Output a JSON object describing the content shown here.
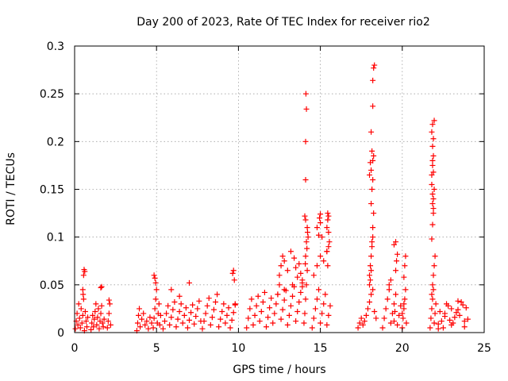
{
  "chart_data": {
    "type": "scatter",
    "title": "Day 200 of 2023, Rate Of TEC Index for receiver rio2",
    "xlabel": "GPS time / hours",
    "ylabel": "ROTI / TECUs",
    "xlim": [
      0,
      25
    ],
    "ylim": [
      0,
      0.3
    ],
    "xticks": [
      "0",
      "5",
      "10",
      "15",
      "20",
      "25"
    ],
    "yticks": [
      "0",
      "0.05",
      "0.1",
      "0.15",
      "0.2",
      "0.25",
      "0.3"
    ],
    "grid": true,
    "marker": "plus",
    "color": "#ff0000",
    "series": [
      {
        "x": [
          0.05,
          0.1,
          0.15,
          0.2,
          0.25,
          0.3,
          0.35,
          0.4,
          0.45,
          0.5,
          0.55,
          0.6,
          0.65,
          0.7,
          0.75,
          0.8,
          0.55,
          0.58,
          0.62,
          0.5,
          0.52,
          1.0,
          1.05,
          1.1,
          1.15,
          1.2,
          1.25,
          1.3,
          1.35,
          1.4,
          1.45,
          1.5,
          1.55,
          1.6,
          1.65,
          1.7,
          1.75,
          1.8,
          1.6,
          1.65,
          2.0,
          2.05,
          2.1,
          2.15,
          2.2,
          2.1,
          3.8,
          3.85,
          3.9,
          3.95,
          4.0,
          4.1,
          4.2,
          4.3,
          4.4,
          4.5,
          4.6,
          4.7,
          4.8,
          4.85,
          4.9,
          4.95,
          5.0,
          5.05,
          5.1,
          5.15,
          5.2,
          5.25,
          4.85,
          4.9,
          4.95,
          5.4,
          5.5,
          5.6,
          5.7,
          5.8,
          5.9,
          6.0,
          6.1,
          6.2,
          6.3,
          6.4,
          6.5,
          6.6,
          6.7,
          6.8,
          6.9,
          7.0,
          7.1,
          7.2,
          7.3,
          7.4,
          7.5,
          7.6,
          7.7,
          5.9,
          6.4,
          7.0,
          7.8,
          7.9,
          8.0,
          8.1,
          8.2,
          8.3,
          8.4,
          8.5,
          8.6,
          8.7,
          8.8,
          8.9,
          9.0,
          9.1,
          9.2,
          9.3,
          9.4,
          9.5,
          9.6,
          9.7,
          9.8,
          9.65,
          9.7,
          9.75,
          9.8,
          10.5,
          10.6,
          10.7,
          10.8,
          10.9,
          11.0,
          11.1,
          11.2,
          11.3,
          11.4,
          11.5,
          11.6,
          11.7,
          11.8,
          11.9,
          12.0,
          12.1,
          12.2,
          12.3,
          12.4,
          12.5,
          12.6,
          12.7,
          12.8,
          12.9,
          13.0,
          13.1,
          13.2,
          13.3,
          13.4,
          13.5,
          13.6,
          13.7,
          13.8,
          13.9,
          12.5,
          12.6,
          12.7,
          12.8,
          13.0,
          13.2,
          13.4,
          13.5,
          13.6,
          13.7,
          13.8,
          13.9,
          12.4,
          12.8,
          13.3,
          13.9,
          14.0,
          14.05,
          14.1,
          14.15,
          14.2,
          14.1,
          14.15,
          14.2,
          14.25,
          14.1,
          14.05,
          14.1,
          14.1,
          14.15,
          14.12,
          14.18,
          14.22,
          14.08,
          14.5,
          14.6,
          14.7,
          14.8,
          14.9,
          15.0,
          15.1,
          15.2,
          15.3,
          15.4,
          15.5,
          15.6,
          14.6,
          14.8,
          15.0,
          15.2,
          15.4,
          15.5,
          15.55,
          14.8,
          14.9,
          14.95,
          15.0,
          15.0,
          15.1,
          15.4,
          15.45,
          15.5,
          15.45,
          15.5,
          15.4,
          15.45,
          17.3,
          17.4,
          17.5,
          17.6,
          17.7,
          17.8,
          17.9,
          18.0,
          18.1,
          18.2,
          18.3,
          18.4,
          18.0,
          18.05,
          18.1,
          18.15,
          18.2,
          18.25,
          18.1,
          18.15,
          18.2,
          18.1,
          18.2,
          18.25,
          18.0,
          18.05,
          18.1,
          18.15,
          18.2,
          18.1,
          18.2,
          18.2,
          18.25,
          18.3,
          18.05,
          18.15,
          18.0,
          18.8,
          18.9,
          19.0,
          19.1,
          19.2,
          19.3,
          19.4,
          19.5,
          19.6,
          19.7,
          19.8,
          19.9,
          19.2,
          19.3,
          19.5,
          19.6,
          19.6,
          19.7,
          19.65,
          19.5,
          19.55,
          20.0,
          20.05,
          20.1,
          20.15,
          20.2,
          20.25,
          20.1,
          20.15,
          20.2,
          20.0,
          20.1,
          21.7,
          21.75,
          21.8,
          21.85,
          21.9,
          21.95,
          22.0,
          22.05,
          21.8,
          21.85,
          21.9,
          21.95,
          22.0,
          21.8,
          21.85,
          21.9,
          21.85,
          21.9,
          21.95,
          21.8,
          21.85,
          21.9,
          21.85,
          21.9,
          21.8,
          21.85,
          21.95,
          21.9,
          21.85,
          21.8,
          21.9,
          21.85,
          22.2,
          22.4,
          22.6,
          22.8,
          23.0,
          23.2,
          23.4,
          23.6,
          23.8,
          24.0,
          22.3,
          22.7,
          23.1,
          23.5,
          23.9,
          22.5,
          22.9,
          23.3,
          23.7,
          22.2,
          22.6,
          23.0,
          23.4,
          23.8
        ],
        "y": [
          0.004,
          0.012,
          0.02,
          0.008,
          0.03,
          0.015,
          0.005,
          0.025,
          0.01,
          0.018,
          0.035,
          0.002,
          0.022,
          0.012,
          0.006,
          0.016,
          0.06,
          0.066,
          0.064,
          0.045,
          0.04,
          0.003,
          0.01,
          0.018,
          0.006,
          0.014,
          0.022,
          0.03,
          0.008,
          0.016,
          0.025,
          0.004,
          0.012,
          0.02,
          0.028,
          0.01,
          0.006,
          0.014,
          0.047,
          0.048,
          0.005,
          0.012,
          0.02,
          0.03,
          0.008,
          0.034,
          0.002,
          0.01,
          0.018,
          0.025,
          0.006,
          0.014,
          0.02,
          0.008,
          0.012,
          0.004,
          0.016,
          0.01,
          0.005,
          0.015,
          0.025,
          0.035,
          0.045,
          0.01,
          0.02,
          0.03,
          0.008,
          0.018,
          0.06,
          0.057,
          0.052,
          0.004,
          0.012,
          0.02,
          0.028,
          0.008,
          0.016,
          0.024,
          0.032,
          0.006,
          0.014,
          0.022,
          0.03,
          0.01,
          0.018,
          0.026,
          0.005,
          0.013,
          0.021,
          0.029,
          0.009,
          0.017,
          0.025,
          0.033,
          0.012,
          0.045,
          0.038,
          0.052,
          0.004,
          0.012,
          0.02,
          0.028,
          0.036,
          0.008,
          0.016,
          0.024,
          0.032,
          0.04,
          0.006,
          0.014,
          0.022,
          0.03,
          0.01,
          0.018,
          0.026,
          0.005,
          0.013,
          0.021,
          0.029,
          0.062,
          0.065,
          0.055,
          0.03,
          0.005,
          0.015,
          0.025,
          0.035,
          0.008,
          0.018,
          0.028,
          0.038,
          0.012,
          0.022,
          0.032,
          0.042,
          0.006,
          0.016,
          0.026,
          0.036,
          0.01,
          0.02,
          0.03,
          0.04,
          0.05,
          0.014,
          0.024,
          0.034,
          0.044,
          0.008,
          0.018,
          0.028,
          0.038,
          0.048,
          0.012,
          0.022,
          0.032,
          0.042,
          0.052,
          0.06,
          0.07,
          0.08,
          0.075,
          0.065,
          0.085,
          0.078,
          0.068,
          0.058,
          0.072,
          0.062,
          0.055,
          0.04,
          0.045,
          0.05,
          0.048,
          0.01,
          0.02,
          0.035,
          0.05,
          0.065,
          0.08,
          0.095,
          0.11,
          0.1,
          0.118,
          0.122,
          0.16,
          0.2,
          0.234,
          0.25,
          0.088,
          0.105,
          0.072,
          0.005,
          0.015,
          0.025,
          0.035,
          0.045,
          0.01,
          0.02,
          0.03,
          0.04,
          0.008,
          0.018,
          0.028,
          0.06,
          0.07,
          0.08,
          0.075,
          0.085,
          0.09,
          0.095,
          0.11,
          0.102,
          0.12,
          0.124,
          0.115,
          0.1,
          0.11,
          0.118,
          0.122,
          0.125,
          0.105,
          0.085,
          0.07,
          0.005,
          0.01,
          0.015,
          0.008,
          0.012,
          0.018,
          0.025,
          0.032,
          0.04,
          0.045,
          0.022,
          0.015,
          0.06,
          0.07,
          0.08,
          0.095,
          0.11,
          0.125,
          0.135,
          0.15,
          0.16,
          0.17,
          0.18,
          0.185,
          0.05,
          0.055,
          0.065,
          0.09,
          0.1,
          0.21,
          0.237,
          0.264,
          0.277,
          0.28,
          0.178,
          0.19,
          0.165,
          0.005,
          0.015,
          0.025,
          0.035,
          0.045,
          0.01,
          0.02,
          0.03,
          0.04,
          0.008,
          0.018,
          0.028,
          0.05,
          0.055,
          0.092,
          0.095,
          0.065,
          0.082,
          0.075,
          0.012,
          0.022,
          0.005,
          0.015,
          0.025,
          0.035,
          0.045,
          0.01,
          0.058,
          0.07,
          0.08,
          0.02,
          0.03,
          0.005,
          0.015,
          0.025,
          0.035,
          0.045,
          0.01,
          0.02,
          0.03,
          0.04,
          0.05,
          0.06,
          0.07,
          0.08,
          0.098,
          0.113,
          0.125,
          0.135,
          0.14,
          0.15,
          0.165,
          0.175,
          0.185,
          0.195,
          0.203,
          0.21,
          0.218,
          0.222,
          0.13,
          0.145,
          0.155,
          0.168,
          0.18,
          0.004,
          0.012,
          0.02,
          0.028,
          0.008,
          0.016,
          0.024,
          0.032,
          0.006,
          0.014,
          0.022,
          0.03,
          0.01,
          0.018,
          0.026,
          0.005,
          0.013,
          0.021,
          0.029,
          0.009,
          0.017,
          0.025,
          0.033,
          0.012
        ]
      }
    ]
  }
}
